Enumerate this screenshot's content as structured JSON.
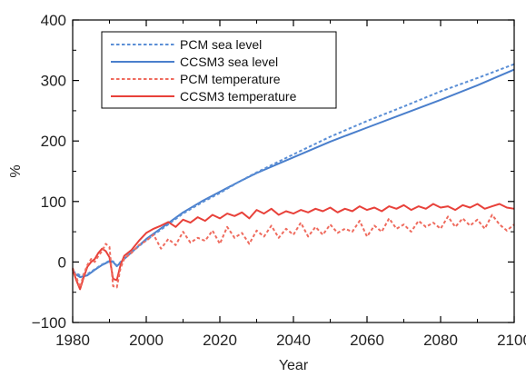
{
  "chart_data": {
    "type": "line",
    "title": "",
    "xlabel": "Year",
    "ylabel": "%",
    "xlim": [
      1980,
      2100
    ],
    "ylim": [
      -100,
      400
    ],
    "xticks": [
      1980,
      2000,
      2020,
      2040,
      2060,
      2080,
      2100
    ],
    "yticks": [
      -100,
      0,
      100,
      200,
      300,
      400
    ],
    "yticklabels": [
      "−100",
      "0",
      "100",
      "200",
      "300",
      "400"
    ],
    "grid": false,
    "legend_position": "top-left",
    "series": [
      {
        "name": "PCM sea level",
        "color": "#5b8fd6",
        "style": "dashed",
        "x": [
          1980,
          1982,
          1984,
          1986,
          1988,
          1990,
          1991,
          1992,
          1994,
          1996,
          1998,
          2000,
          2005,
          2010,
          2015,
          2020,
          2025,
          2030,
          2040,
          2050,
          2060,
          2070,
          2080,
          2090,
          2100
        ],
        "y": [
          -15,
          -22,
          -20,
          -12,
          -4,
          2,
          1,
          -6,
          6,
          16,
          26,
          36,
          58,
          80,
          98,
          114,
          132,
          148,
          178,
          207,
          233,
          257,
          282,
          304,
          327
        ]
      },
      {
        "name": "CCSM3 sea level",
        "color": "#4a7fcc",
        "style": "solid",
        "x": [
          1980,
          1982,
          1984,
          1986,
          1988,
          1990,
          1991,
          1992,
          1994,
          1996,
          1998,
          2000,
          2005,
          2010,
          2015,
          2020,
          2025,
          2030,
          2040,
          2050,
          2060,
          2070,
          2080,
          2090,
          2100
        ],
        "y": [
          -17,
          -25,
          -22,
          -13,
          -5,
          1,
          0,
          -7,
          5,
          16,
          27,
          38,
          60,
          82,
          100,
          116,
          132,
          147,
          173,
          199,
          222,
          245,
          268,
          292,
          318
        ]
      },
      {
        "name": "PCM temperature",
        "color": "#ef6b5e",
        "style": "dashed",
        "x": [
          1980,
          1981,
          1982,
          1983,
          1984,
          1985,
          1986,
          1987,
          1988,
          1989,
          1990,
          1991,
          1992,
          1993,
          1994,
          1996,
          1998,
          2000,
          2002,
          2004,
          2006,
          2008,
          2010,
          2012,
          2014,
          2016,
          2018,
          2020,
          2022,
          2024,
          2026,
          2028,
          2030,
          2032,
          2034,
          2036,
          2038,
          2040,
          2042,
          2044,
          2046,
          2048,
          2050,
          2052,
          2054,
          2056,
          2058,
          2060,
          2062,
          2064,
          2066,
          2068,
          2070,
          2072,
          2074,
          2076,
          2078,
          2080,
          2082,
          2084,
          2086,
          2088,
          2090,
          2092,
          2094,
          2096,
          2098,
          2100
        ],
        "y": [
          -10,
          -25,
          -42,
          -20,
          -5,
          5,
          0,
          10,
          18,
          30,
          25,
          -40,
          -42,
          -10,
          5,
          15,
          28,
          35,
          45,
          22,
          38,
          28,
          50,
          32,
          40,
          35,
          52,
          30,
          58,
          40,
          48,
          30,
          52,
          42,
          60,
          40,
          55,
          45,
          65,
          42,
          58,
          45,
          62,
          48,
          55,
          50,
          68,
          42,
          60,
          50,
          72,
          55,
          62,
          50,
          68,
          58,
          65,
          55,
          75,
          58,
          72,
          60,
          70,
          55,
          78,
          62,
          52,
          62
        ]
      },
      {
        "name": "CCSM3 temperature",
        "color": "#e8413a",
        "style": "solid",
        "x": [
          1980,
          1981,
          1982,
          1983,
          1984,
          1985,
          1986,
          1987,
          1988,
          1989,
          1990,
          1991,
          1992,
          1993,
          1994,
          1996,
          1998,
          2000,
          2002,
          2004,
          2006,
          2008,
          2010,
          2012,
          2014,
          2016,
          2018,
          2020,
          2022,
          2024,
          2026,
          2028,
          2030,
          2032,
          2034,
          2036,
          2038,
          2040,
          2042,
          2044,
          2046,
          2048,
          2050,
          2052,
          2054,
          2056,
          2058,
          2060,
          2062,
          2064,
          2066,
          2068,
          2070,
          2072,
          2074,
          2076,
          2078,
          2080,
          2082,
          2084,
          2086,
          2088,
          2090,
          2092,
          2094,
          2096,
          2098,
          2100
        ],
        "y": [
          -12,
          -30,
          -45,
          -25,
          -8,
          0,
          5,
          15,
          22,
          18,
          8,
          -28,
          -30,
          -5,
          10,
          20,
          35,
          48,
          55,
          60,
          66,
          58,
          70,
          65,
          74,
          68,
          78,
          72,
          80,
          76,
          82,
          72,
          86,
          80,
          88,
          78,
          84,
          80,
          86,
          82,
          88,
          84,
          90,
          82,
          88,
          84,
          92,
          86,
          90,
          84,
          92,
          88,
          94,
          86,
          92,
          88,
          96,
          90,
          92,
          86,
          94,
          90,
          96,
          88,
          92,
          96,
          90,
          88
        ]
      }
    ]
  }
}
